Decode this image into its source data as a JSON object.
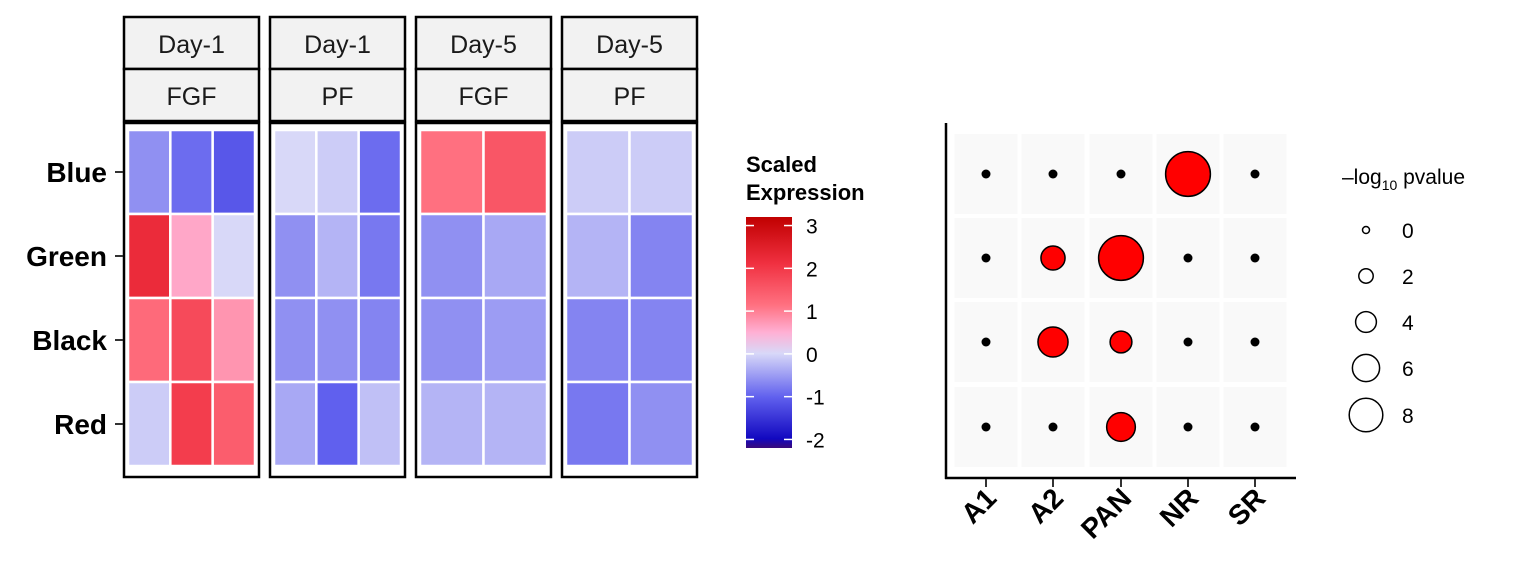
{
  "chart_data": [
    {
      "type": "heatmap",
      "rows": [
        "Blue",
        "Green",
        "Black",
        "Red"
      ],
      "panels": [
        {
          "top": "Day-1",
          "bottom": "FGF",
          "values": [
            [
              -0.6,
              -0.9,
              -1.1
            ],
            [
              2.3,
              0.6,
              0.0
            ],
            [
              1.3,
              1.8,
              0.8
            ],
            [
              -0.1,
              2.0,
              1.5
            ]
          ]
        },
        {
          "top": "Day-1",
          "bottom": "PF",
          "values": [
            [
              0.0,
              -0.1,
              -0.9
            ],
            [
              -0.6,
              -0.3,
              -0.8
            ],
            [
              -0.6,
              -0.6,
              -0.7
            ],
            [
              -0.4,
              -1.0,
              -0.2
            ]
          ]
        },
        {
          "top": "Day-5",
          "bottom": "FGF",
          "values": [
            [
              1.2,
              1.6
            ],
            [
              -0.6,
              -0.4
            ],
            [
              -0.6,
              -0.5
            ],
            [
              -0.3,
              -0.3
            ]
          ]
        },
        {
          "top": "Day-5",
          "bottom": "PF",
          "values": [
            [
              -0.1,
              -0.1
            ],
            [
              -0.3,
              -0.7
            ],
            [
              -0.7,
              -0.7
            ],
            [
              -0.8,
              -0.6
            ]
          ]
        }
      ],
      "legend": {
        "title_line1": "Scaled",
        "title_line2": "Expression",
        "ticks": [
          3,
          2,
          1,
          0,
          -1,
          -2
        ],
        "tick_labels": [
          "3",
          "2",
          "1",
          "0",
          "-1",
          "-2"
        ],
        "range": [
          -2.2,
          3.2
        ],
        "colors": {
          "low": "#3a0a7a",
          "mid_low": "#1a1ad0",
          "zero": "#d8d8f8",
          "mid_high": "#ff6070",
          "high": "#c81010"
        }
      }
    },
    {
      "type": "scatter",
      "subtype": "dot-plot",
      "x_categories": [
        "A1",
        "A2",
        "PAN",
        "NR",
        "SR"
      ],
      "y_categories": [
        "Blue",
        "Green",
        "Black",
        "Red"
      ],
      "values": [
        {
          "x": "A1",
          "y": "Blue",
          "neg_log10_p": 0
        },
        {
          "x": "A2",
          "y": "Blue",
          "neg_log10_p": 0
        },
        {
          "x": "PAN",
          "y": "Blue",
          "neg_log10_p": 0
        },
        {
          "x": "NR",
          "y": "Blue",
          "neg_log10_p": 8
        },
        {
          "x": "SR",
          "y": "Blue",
          "neg_log10_p": 0
        },
        {
          "x": "A1",
          "y": "Green",
          "neg_log10_p": 0
        },
        {
          "x": "A2",
          "y": "Green",
          "neg_log10_p": 3.5
        },
        {
          "x": "PAN",
          "y": "Green",
          "neg_log10_p": 8
        },
        {
          "x": "NR",
          "y": "Green",
          "neg_log10_p": 0
        },
        {
          "x": "SR",
          "y": "Green",
          "neg_log10_p": 0
        },
        {
          "x": "A1",
          "y": "Black",
          "neg_log10_p": 0
        },
        {
          "x": "A2",
          "y": "Black",
          "neg_log10_p": 4.8
        },
        {
          "x": "PAN",
          "y": "Black",
          "neg_log10_p": 3
        },
        {
          "x": "NR",
          "y": "Black",
          "neg_log10_p": 0
        },
        {
          "x": "SR",
          "y": "Black",
          "neg_log10_p": 0
        },
        {
          "x": "A1",
          "y": "Red",
          "neg_log10_p": 0
        },
        {
          "x": "A2",
          "y": "Red",
          "neg_log10_p": 0
        },
        {
          "x": "PAN",
          "y": "Red",
          "neg_log10_p": 4.5
        },
        {
          "x": "NR",
          "y": "Red",
          "neg_log10_p": 0
        },
        {
          "x": "SR",
          "y": "Red",
          "neg_log10_p": 0
        }
      ],
      "significant_color": "#ff0000",
      "nonsignificant_color": "#000000",
      "legend": {
        "title_prefix": "–log",
        "title_sub": "10",
        "title_suffix": " pvalue",
        "sizes": [
          0,
          2,
          4,
          6,
          8
        ],
        "labels": [
          "0",
          "2",
          "4",
          "6",
          "8"
        ]
      }
    }
  ]
}
